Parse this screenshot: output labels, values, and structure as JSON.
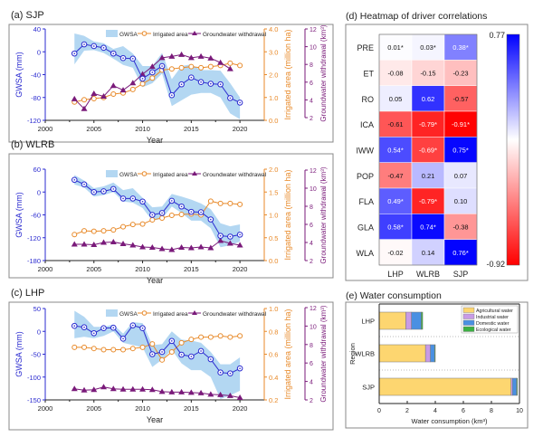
{
  "colors": {
    "gwsa": "#2b2bd0",
    "band": "#b3d7f2",
    "irrigated": "#e88a2a",
    "withdrawal": "#7a1a7a",
    "agricultural": "#fdd670",
    "industrial": "#c89be6",
    "domestic": "#4a90e2",
    "ecological": "#3cb043",
    "heat_pos": "#0000ff",
    "heat_neg": "#ff0000"
  },
  "chart_data": [
    {
      "id": "a",
      "type": "line",
      "title": "(a) SJP",
      "xlabel": "Year",
      "xticks": [
        2000,
        2005,
        2010,
        2015,
        2020
      ],
      "xlim": [
        2000,
        2022.5
      ],
      "ylabel": "GWSA (mm)",
      "ylim": [
        -120,
        40
      ],
      "yticks": [
        40,
        0,
        -40,
        -80,
        -120
      ],
      "y2label": "Irrigated area (million ha)",
      "y2lim": [
        0,
        4
      ],
      "y2ticks": [
        "0.0",
        "1.0",
        "2.0",
        "3.0",
        "4.0"
      ],
      "y3label": "Groundwater withdrawal (km³)",
      "y3lim": [
        2,
        12
      ],
      "y3ticks": [
        2,
        4,
        6,
        8,
        10,
        12
      ],
      "legend": [
        "GWSA",
        "Irrigated area",
        "Groundwater withdrawal"
      ],
      "legend_placement": "top-right",
      "x": [
        2003,
        2004,
        2005,
        2006,
        2007,
        2008,
        2009,
        2010,
        2011,
        2012,
        2013,
        2014,
        2015,
        2016,
        2017,
        2018,
        2019,
        2020
      ],
      "gwsa": [
        -3,
        13,
        10,
        7,
        -3,
        -11,
        -12,
        -47,
        -36,
        -25,
        -76,
        -57,
        -45,
        -53,
        -56,
        -57,
        -81,
        -89
      ],
      "gwsa_upper": [
        32,
        28,
        18,
        15,
        5,
        10,
        -3,
        -25,
        -25,
        -2,
        -48,
        -25,
        -22,
        -32,
        -32,
        -33,
        -55,
        -80
      ],
      "gwsa_lower": [
        -22,
        2,
        3,
        -2,
        -12,
        -23,
        -28,
        -62,
        -55,
        -38,
        -95,
        -85,
        -75,
        -72,
        -72,
        -80,
        -108,
        -118
      ],
      "irrigated": [
        0.8,
        0.9,
        0.95,
        1.0,
        1.15,
        1.2,
        1.35,
        1.6,
        1.85,
        2.2,
        2.25,
        2.3,
        2.35,
        2.3,
        2.35,
        2.4,
        2.5,
        2.4
      ],
      "withdrawal_x": [
        2003,
        2004,
        2005,
        2006,
        2007,
        2008,
        2009,
        2010,
        2011,
        2012,
        2013,
        2014,
        2015,
        2016,
        2017,
        2018,
        2019
      ],
      "withdrawal": [
        4.1,
        3.0,
        4.7,
        4.4,
        5.6,
        5.1,
        5.9,
        6.9,
        7.75,
        8.75,
        8.9,
        9.1,
        8.75,
        8.9,
        8.7,
        8.2,
        7.5
      ]
    },
    {
      "id": "b",
      "type": "line",
      "title": "(b) WLRB",
      "xlabel": "Year",
      "xticks": [
        2000,
        2005,
        2010,
        2015,
        2020
      ],
      "xlim": [
        2000,
        2022.5
      ],
      "ylabel": "GWSA (mm)",
      "ylim": [
        -180,
        60
      ],
      "yticks": [
        60,
        0,
        -60,
        -120,
        -180
      ],
      "y2label": "Irrigated area (million ha)",
      "y2lim": [
        0,
        2
      ],
      "y2ticks": [
        "0.0",
        "0.5",
        "1.0",
        "1.5",
        "2.0"
      ],
      "y3label": "Groundwater withdrawal (km³)",
      "y3lim": [
        2,
        12
      ],
      "y3ticks": [
        2,
        4,
        6,
        8,
        10,
        12
      ],
      "legend": [
        "GWSA",
        "Irrigated area",
        "Groundwater withdrawal"
      ],
      "legend_placement": "top-right",
      "x": [
        2003,
        2004,
        2005,
        2006,
        2007,
        2008,
        2009,
        2010,
        2011,
        2012,
        2013,
        2014,
        2015,
        2016,
        2017,
        2018,
        2019,
        2020
      ],
      "gwsa": [
        32,
        20,
        0,
        2,
        8,
        -17,
        -17,
        -25,
        -60,
        -55,
        -23,
        -38,
        -52,
        -53,
        -72,
        -115,
        -117,
        -112
      ],
      "gwsa_upper": [
        45,
        30,
        10,
        15,
        25,
        5,
        10,
        -15,
        -40,
        -38,
        -5,
        -12,
        -20,
        -30,
        -45,
        -82,
        -90,
        -85
      ],
      "gwsa_lower": [
        20,
        12,
        -12,
        -8,
        0,
        -25,
        -28,
        -42,
        -75,
        -70,
        -38,
        -55,
        -75,
        -75,
        -95,
        -145,
        -140,
        -130
      ],
      "irrigated": [
        0.57,
        0.65,
        0.64,
        0.65,
        0.67,
        0.74,
        0.79,
        0.8,
        0.89,
        0.93,
        0.99,
        1.01,
        1.02,
        1.0,
        1.3,
        1.25,
        1.25,
        1.23
      ],
      "withdrawal_x": [
        2003,
        2004,
        2005,
        2006,
        2007,
        2008,
        2009,
        2010,
        2011,
        2012,
        2013,
        2014,
        2015,
        2016,
        2017,
        2018,
        2019,
        2020
      ],
      "withdrawal": [
        3.8,
        3.8,
        3.75,
        4.0,
        4.05,
        3.85,
        3.7,
        3.5,
        3.45,
        3.3,
        3.2,
        3.45,
        3.4,
        3.5,
        3.4,
        4.2,
        3.9,
        3.7
      ]
    },
    {
      "id": "c",
      "type": "line",
      "title": "(c) LHP",
      "xlabel": "Year",
      "xticks": [
        2000,
        2005,
        2010,
        2015,
        2020
      ],
      "xlim": [
        2000,
        2022.5
      ],
      "ylabel": "GWSA (mm)",
      "ylim": [
        -150,
        50
      ],
      "yticks": [
        50,
        0,
        -50,
        -100,
        -150
      ],
      "y2label": "Irrigated area (million ha)",
      "y2lim": [
        0.2,
        1.0
      ],
      "y2ticks": [
        "0.2",
        "0.4",
        "0.6",
        "0.8",
        "1.0"
      ],
      "y3label": "Groundwater withdrawal (km³)",
      "y3lim": [
        2,
        12
      ],
      "y3ticks": [
        2,
        4,
        6,
        8,
        10,
        12
      ],
      "legend": [
        "GWSA",
        "Irrigated area",
        "Groundwater withdrawal"
      ],
      "legend_placement": "top-right",
      "x": [
        2003,
        2004,
        2005,
        2006,
        2007,
        2008,
        2009,
        2010,
        2011,
        2012,
        2013,
        2014,
        2015,
        2016,
        2017,
        2018,
        2019,
        2020
      ],
      "gwsa": [
        12,
        9,
        -4,
        7,
        8,
        -16,
        13,
        7,
        -50,
        -45,
        -21,
        -51,
        -55,
        -43,
        -61,
        -90,
        -92,
        -81
      ],
      "gwsa_upper": [
        45,
        32,
        10,
        10,
        15,
        -5,
        20,
        18,
        -30,
        -28,
        0,
        -18,
        -20,
        -25,
        -45,
        -72,
        -72,
        -57
      ],
      "gwsa_lower": [
        -15,
        -12,
        -15,
        -10,
        0,
        -25,
        -30,
        -35,
        -78,
        -62,
        -40,
        -70,
        -85,
        -85,
        -100,
        -148,
        -140,
        -130
      ],
      "irrigated": [
        0.66,
        0.66,
        0.65,
        0.64,
        0.64,
        0.64,
        0.65,
        0.66,
        0.69,
        0.55,
        0.62,
        0.7,
        0.73,
        0.75,
        0.75,
        0.76,
        0.75,
        0.76
      ],
      "withdrawal_x": [
        2003,
        2004,
        2005,
        2006,
        2007,
        2008,
        2009,
        2010,
        2011,
        2012,
        2013,
        2014,
        2015,
        2016,
        2017,
        2018,
        2019,
        2020
      ],
      "withdrawal": [
        3.2,
        3.05,
        3.1,
        3.4,
        3.2,
        3.15,
        3.15,
        3.15,
        3.1,
        2.9,
        2.85,
        2.85,
        2.8,
        2.75,
        2.6,
        2.55,
        2.45,
        2.25
      ]
    },
    {
      "id": "d",
      "type": "heatmap",
      "title": "(d) Heatmap of driver correlations",
      "rows": [
        "PRE",
        "ET",
        "RO",
        "ICA",
        "IWW",
        "POP",
        "FLA",
        "GLA",
        "WLA"
      ],
      "columns": [
        "LHP",
        "WLRB",
        "SJP"
      ],
      "values": [
        [
          0.01,
          0.03,
          0.38
        ],
        [
          -0.08,
          -0.15,
          -0.23
        ],
        [
          0.05,
          0.62,
          -0.57
        ],
        [
          -0.61,
          -0.79,
          -0.91
        ],
        [
          0.54,
          -0.69,
          0.75
        ],
        [
          -0.47,
          0.21,
          0.07
        ],
        [
          0.49,
          -0.79,
          0.1
        ],
        [
          0.58,
          0.74,
          -0.38
        ],
        [
          -0.02,
          0.14,
          0.76
        ]
      ],
      "labels": [
        [
          "0.01*",
          "0.03*",
          "0.38*"
        ],
        [
          "-0.08",
          "-0.15",
          "-0.23"
        ],
        [
          "0.05",
          "0.62",
          "-0.57"
        ],
        [
          "-0.61",
          "-0.79*",
          "-0.91*"
        ],
        [
          "0.54*",
          "-0.69*",
          "0.75*"
        ],
        [
          "-0.47",
          "0.21",
          "0.07"
        ],
        [
          "0.49*",
          "-0.79*",
          "0.10"
        ],
        [
          "0.58*",
          "0.74*",
          "-0.38"
        ],
        [
          "-0.02",
          "0.14",
          "0.76*"
        ]
      ],
      "colorbar": {
        "max": 0.77,
        "min": -0.92,
        "max_label": "0.77",
        "min_label": "-0.92"
      }
    },
    {
      "id": "e",
      "type": "bar",
      "orientation": "horizontal",
      "stacked": true,
      "title": "(e) Water consumption",
      "xlabel": "Water consumption (km³)",
      "ylabel": "Region",
      "xlim": [
        0,
        10
      ],
      "xticks": [
        0,
        2,
        4,
        6,
        8,
        10
      ],
      "categories": [
        "LHP",
        "WLRB",
        "SJP"
      ],
      "legend_placement": "top-right",
      "series": [
        {
          "name": "Agricultural water",
          "values": [
            1.9,
            3.3,
            9.4
          ]
        },
        {
          "name": "Industrial water",
          "values": [
            0.4,
            0.35,
            0.1
          ]
        },
        {
          "name": "Domestic water",
          "values": [
            0.7,
            0.3,
            0.3
          ]
        },
        {
          "name": "Ecological water",
          "values": [
            0.1,
            0.05,
            0.05
          ]
        }
      ]
    }
  ]
}
